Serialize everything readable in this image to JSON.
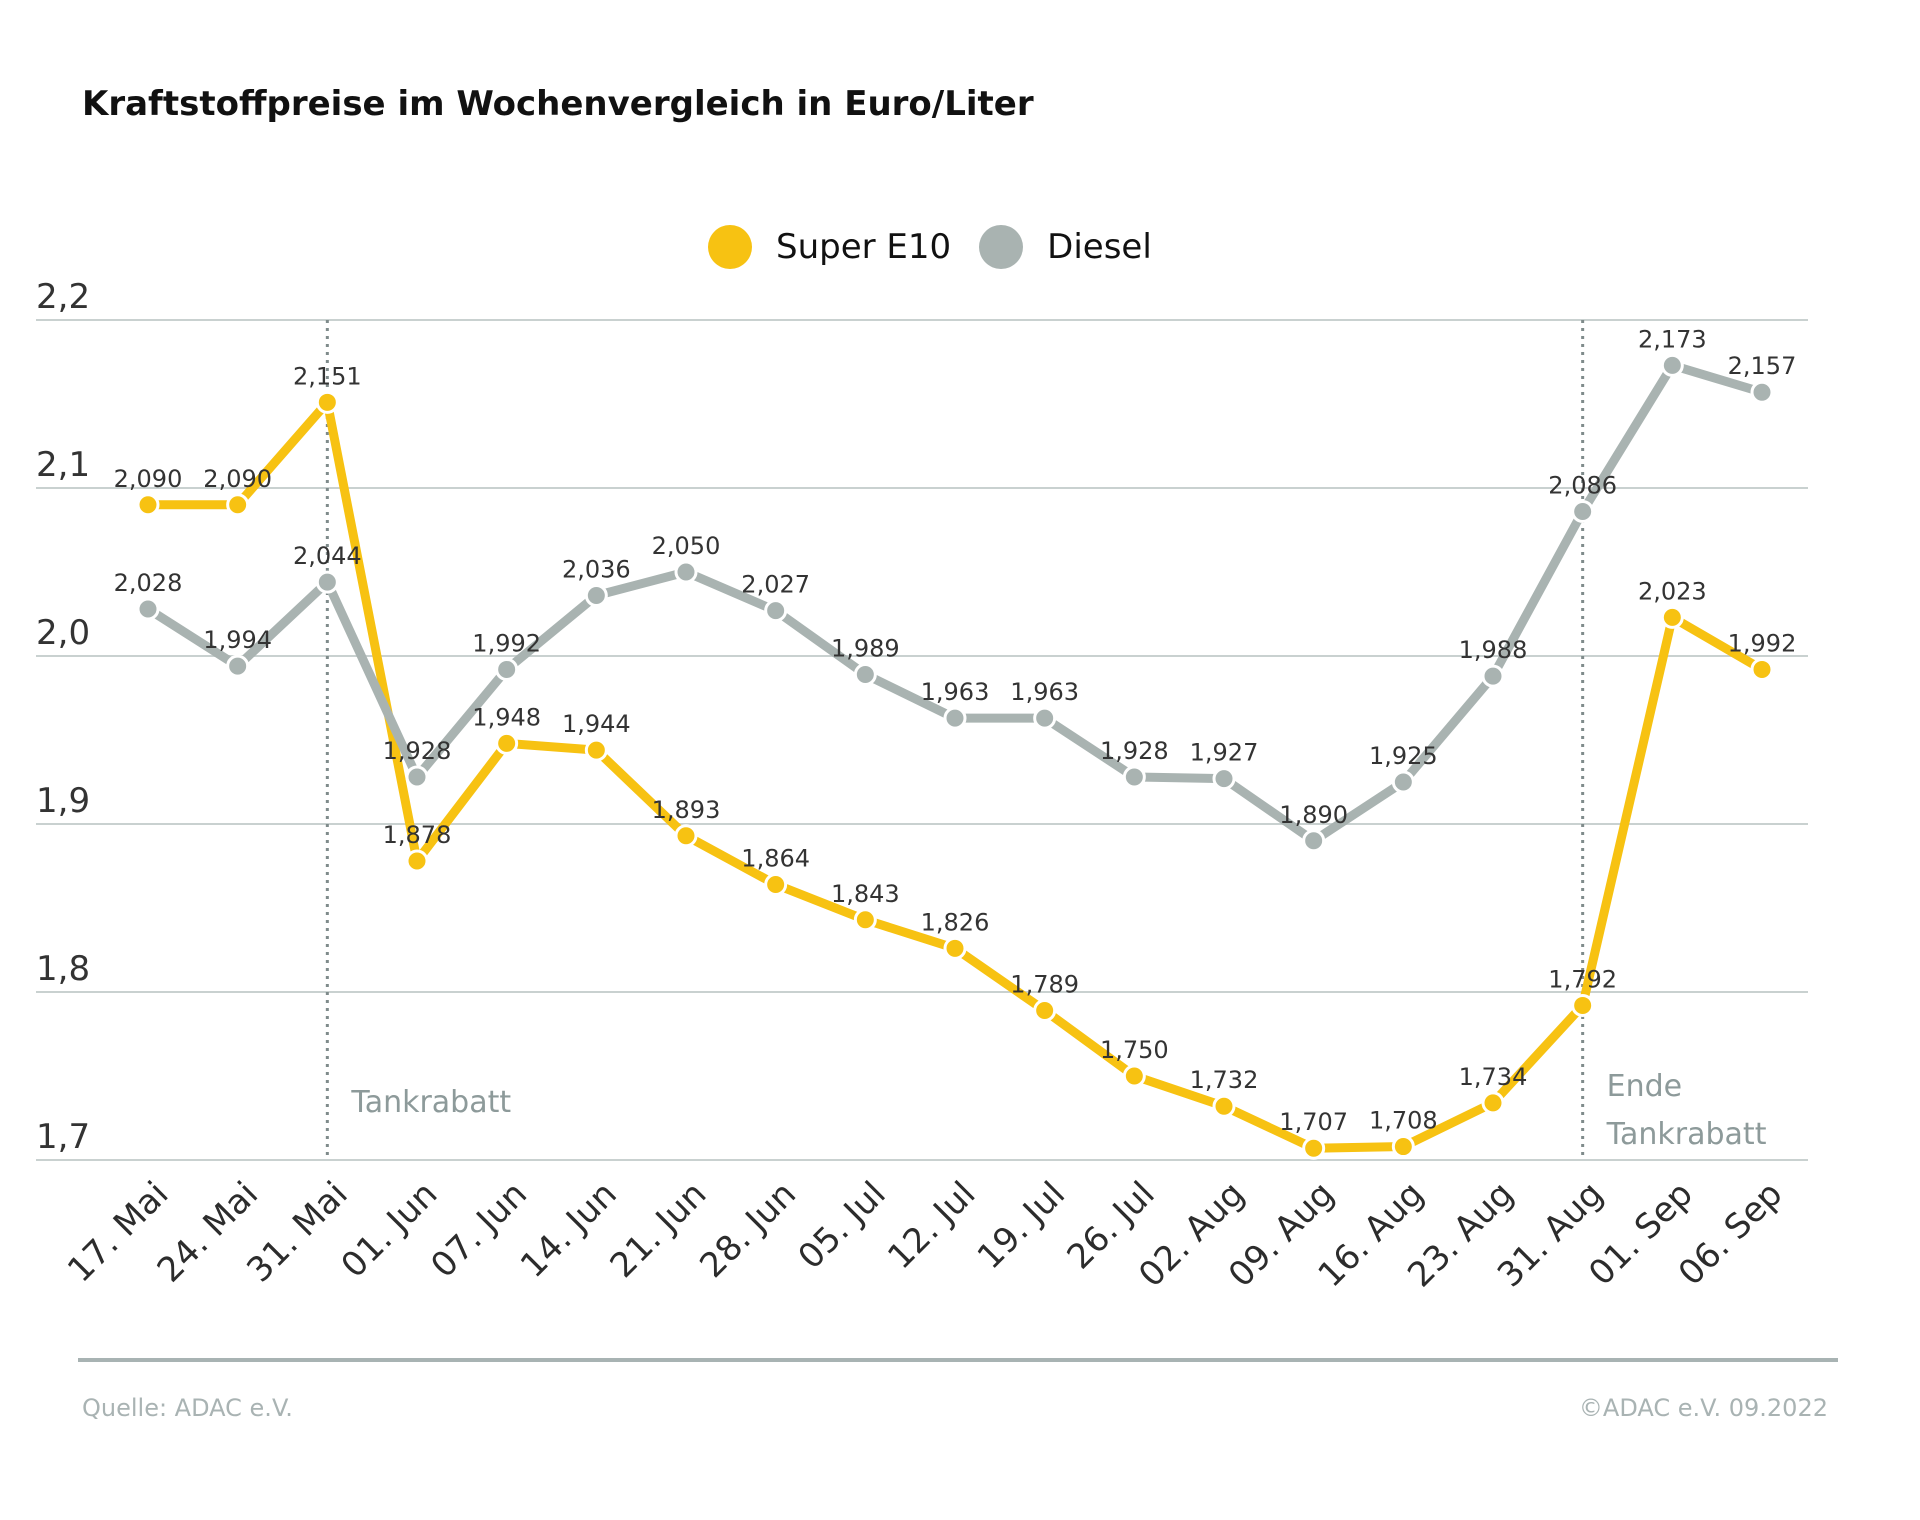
{
  "chart_data": {
    "type": "line",
    "title": "Kraftstoffpreise im Wochenvergleich in Euro/Liter",
    "categories": [
      "17. Mai",
      "24. Mai",
      "31. Mai",
      "01. Jun",
      "07. Jun",
      "14. Jun",
      "21. Jun",
      "28. Jun",
      "05. Jul",
      "12. Jul",
      "19. Jul",
      "26. Jul",
      "02. Aug",
      "09. Aug",
      "16. Aug",
      "23. Aug",
      "31. Aug",
      "01. Sep",
      "06. Sep"
    ],
    "series": [
      {
        "name": "Super E10",
        "color": "#f7c212",
        "values": [
          2.09,
          2.09,
          2.151,
          1.878,
          1.948,
          1.944,
          1.893,
          1.864,
          1.843,
          1.826,
          1.789,
          1.75,
          1.732,
          1.707,
          1.708,
          1.734,
          1.792,
          2.023,
          1.992
        ],
        "labels": [
          "2,090",
          "2,090",
          "2,151",
          "1,878",
          "1,948",
          "1,944",
          "1,893",
          "1,864",
          "1,843",
          "1,826",
          "1,789",
          "1,750",
          "1,732",
          "1,707",
          "1,708",
          "1,734",
          "1,792",
          "2,023",
          "1,992"
        ]
      },
      {
        "name": "Diesel",
        "color": "#a9b3b1",
        "values": [
          2.028,
          1.994,
          2.044,
          1.928,
          1.992,
          2.036,
          2.05,
          2.027,
          1.989,
          1.963,
          1.963,
          1.928,
          1.927,
          1.89,
          1.925,
          1.988,
          2.086,
          2.173,
          2.157
        ],
        "labels": [
          "2,028",
          "1,994",
          "2,044",
          "1,928",
          "1,992",
          "2,036",
          "2,050",
          "2,027",
          "1,989",
          "1,963",
          "1,963",
          "1,928",
          "1,927",
          "1,890",
          "1,925",
          "1,988",
          "2,086",
          "2,173",
          "2,157"
        ]
      }
    ],
    "y_ticks": [
      {
        "value": 1.7,
        "label": "1,7"
      },
      {
        "value": 1.8,
        "label": "1,8"
      },
      {
        "value": 1.9,
        "label": "1,9"
      },
      {
        "value": 2.0,
        "label": "2,0"
      },
      {
        "value": 2.1,
        "label": "2,1"
      },
      {
        "value": 2.2,
        "label": "2,2"
      }
    ],
    "ylim": [
      1.7,
      2.2
    ],
    "xlabel": "",
    "ylabel": "",
    "grid": true,
    "legend_position": "top-center",
    "annotations": [
      {
        "category": "31. Mai",
        "lines": [
          "Tankrabatt"
        ]
      },
      {
        "category": "31. Aug",
        "lines": [
          "Ende",
          "Tankrabatt"
        ]
      }
    ]
  },
  "footer": {
    "source": "Quelle: ADAC e.V.",
    "copyright": "©ADAC e.V.  09.2022"
  }
}
